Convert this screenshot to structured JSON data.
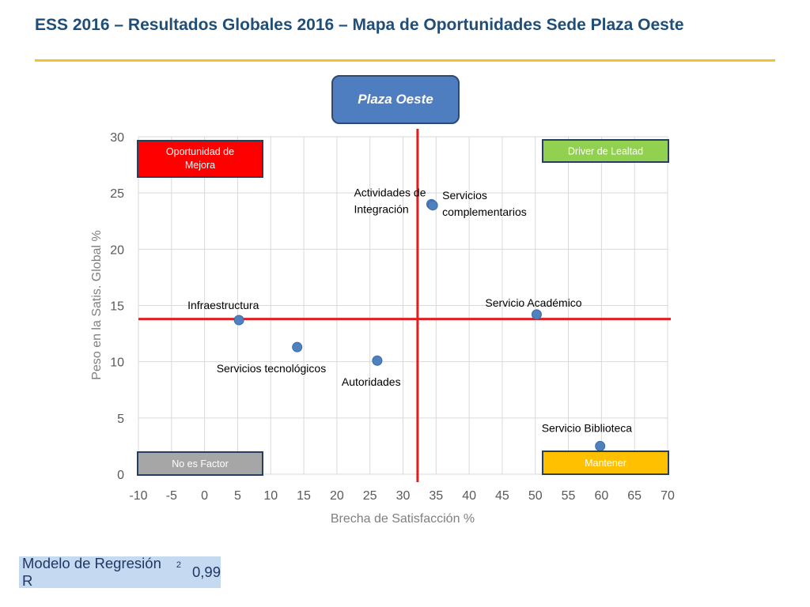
{
  "slide": {
    "title": "ESS 2016 – Resultados Globales 2016 – Mapa de Oportunidades Sede Plaza Oeste",
    "site": "Plaza Oeste"
  },
  "regression": {
    "label": "Modelo de Regresión R",
    "superscript": "2",
    "value": "0,99"
  },
  "chart_data": {
    "type": "scatter",
    "title": "",
    "xlabel": "Brecha de Satisfacción %",
    "ylabel": "Peso en la Satis. Global %",
    "xlim": [
      -10,
      70
    ],
    "ylim": [
      0,
      30
    ],
    "x_ticks": [
      -10,
      -5,
      0,
      5,
      10,
      15,
      20,
      25,
      30,
      35,
      40,
      45,
      50,
      55,
      60,
      65,
      70
    ],
    "y_ticks": [
      0,
      5,
      10,
      15,
      20,
      25,
      30
    ],
    "grid": true,
    "point_color": "#4f81bd",
    "reference_lines": {
      "x": 32.2,
      "y": 13.8,
      "color": "#e02020"
    },
    "points": [
      {
        "label": "Infraestructura",
        "x": 5.2,
        "y": 13.7
      },
      {
        "label": "Servicios tecnológicos",
        "x": 14,
        "y": 11.3
      },
      {
        "label": "Autoridades",
        "x": 26.1,
        "y": 10.1
      },
      {
        "label": "Actividades de Integración",
        "x": 34.3,
        "y": 24
      },
      {
        "label": "Servicios complementarios",
        "x": 34.5,
        "y": 23.9
      },
      {
        "label": "Servicio Académico",
        "x": 50.2,
        "y": 14.2
      },
      {
        "label": "Servicio Biblioteca",
        "x": 59.8,
        "y": 2.5
      }
    ],
    "quadrants": [
      {
        "label": "Oportunidad de Mejora",
        "position": "top-left",
        "fill": "#ff0000",
        "text_color": "#ffffff"
      },
      {
        "label": "Driver de Lealtad",
        "position": "top-right",
        "fill": "#92d050",
        "text_color": "#ffffff"
      },
      {
        "label": "No es Factor",
        "position": "bottom-left",
        "fill": "#a6a6a6",
        "text_color": "#ffffff"
      },
      {
        "label": "Mantener",
        "position": "bottom-right",
        "fill": "#ffc000",
        "text_color": "#ffffff"
      }
    ]
  }
}
